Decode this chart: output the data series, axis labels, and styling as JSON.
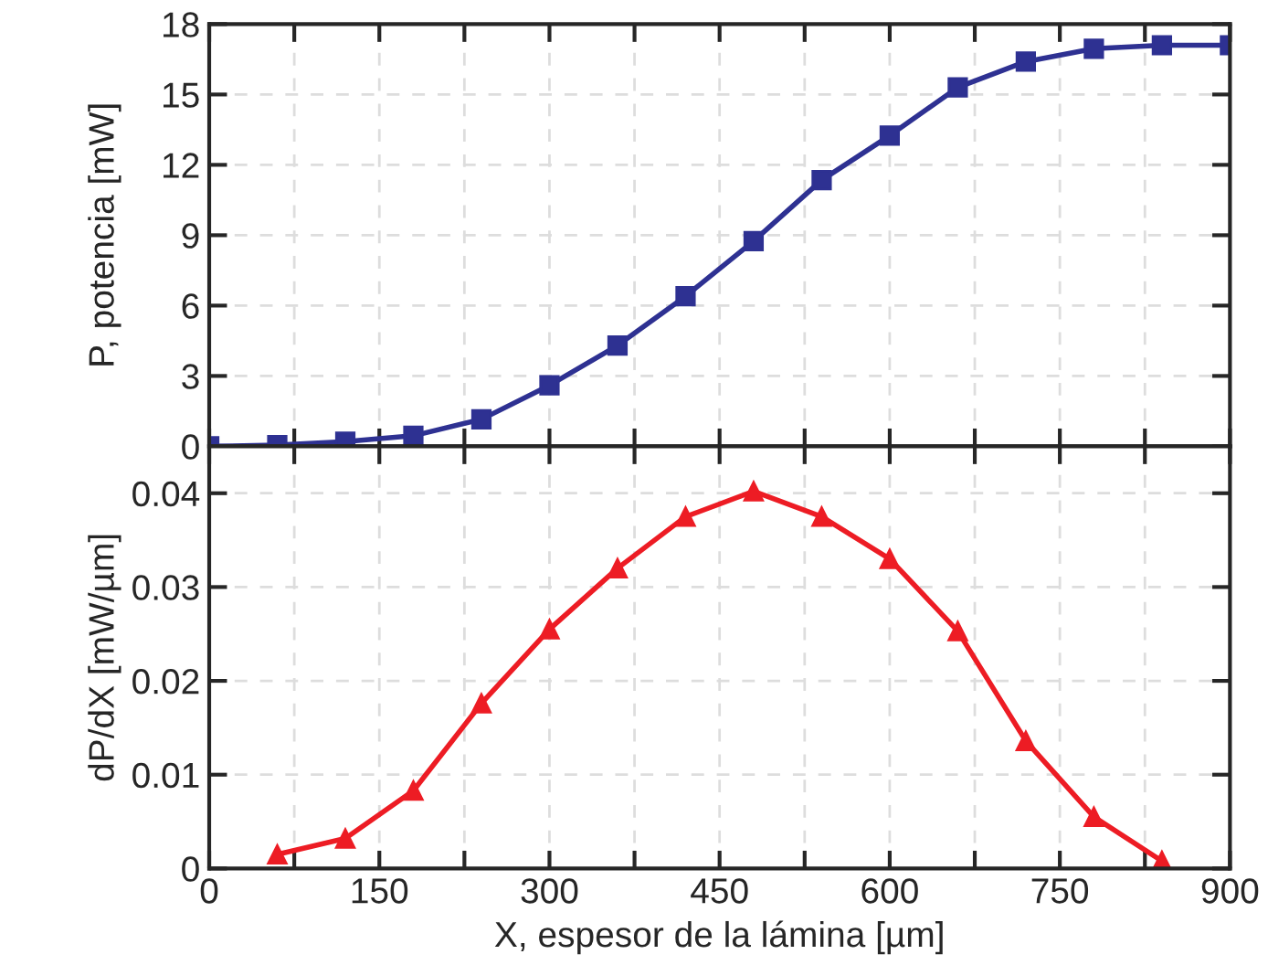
{
  "chart_data": [
    {
      "type": "line",
      "ylabel": "P, potencia [mW]",
      "x": [
        0,
        60,
        120,
        180,
        240,
        300,
        360,
        420,
        480,
        540,
        600,
        660,
        720,
        780,
        840,
        900
      ],
      "series": [
        {
          "color": "#2e3192",
          "values": [
            0,
            0.05,
            0.2,
            0.45,
            1.15,
            2.6,
            4.3,
            6.4,
            8.75,
            11.35,
            13.25,
            15.3,
            16.4,
            16.95,
            17.1,
            17.1
          ]
        }
      ],
      "xlim": [
        0,
        900
      ],
      "xticks": [
        0,
        {
          "value": 75,
          "label": null
        },
        150,
        {
          "value": 225,
          "label": null
        },
        300,
        {
          "value": 375,
          "label": null
        },
        450,
        {
          "value": 525,
          "label": null
        },
        600,
        {
          "value": 675,
          "label": null
        },
        750,
        {
          "value": 825,
          "label": null
        },
        900
      ],
      "ylim": [
        0,
        18
      ],
      "yticks": [
        0,
        3,
        6,
        9,
        12,
        15,
        18
      ],
      "grid": true,
      "marker": "square",
      "line_style": "solid",
      "tick_labels": "y"
    },
    {
      "type": "line",
      "xlabel": "X, espesor de la lámina [µm]",
      "ylabel": "dP/dX [mW/µm]",
      "x": [
        60,
        120,
        180,
        240,
        300,
        360,
        420,
        480,
        540,
        600,
        660,
        720,
        780,
        840
      ],
      "series": [
        {
          "color": "#ed1c24",
          "values": [
            0.0015,
            0.0032,
            0.0083,
            0.0176,
            0.0255,
            0.032,
            0.0375,
            0.0402,
            0.0375,
            0.033,
            0.0253,
            0.0136,
            0.0055,
            0.0008
          ]
        }
      ],
      "xlim": [
        0,
        900
      ],
      "xticks": [
        0,
        {
          "value": 75,
          "label": null
        },
        150,
        {
          "value": 225,
          "label": null
        },
        300,
        {
          "value": 375,
          "label": null
        },
        450,
        {
          "value": 525,
          "label": null
        },
        600,
        {
          "value": 675,
          "label": null
        },
        750,
        {
          "value": 825,
          "label": null
        },
        900
      ],
      "ylim": [
        0,
        0.045
      ],
      "yticks": [
        0,
        0.01,
        0.02,
        0.03,
        0.04
      ],
      "grid": true,
      "marker": "triangle",
      "line_style": "solid"
    }
  ]
}
